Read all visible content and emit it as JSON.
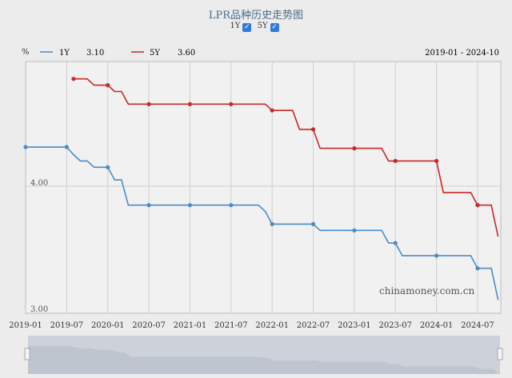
{
  "title": "LPR品种历史走势图",
  "toggles": [
    {
      "label": "1Y",
      "checked": true
    },
    {
      "label": "5Y",
      "checked": true
    }
  ],
  "unit": "%",
  "range_label": "2019-01 - 2024-10",
  "watermark": "chinamoney.com.cn",
  "check_glyph": "✓",
  "chart_data": {
    "type": "line",
    "title": "LPR品种历史走势图",
    "ylabel": "%",
    "ylim": [
      3.0,
      5.0
    ],
    "yticks": [
      "4.00",
      "3.00"
    ],
    "xticks": [
      "2019-01",
      "2019-07",
      "2020-01",
      "2020-07",
      "2021-01",
      "2021-07",
      "2022-01",
      "2022-07",
      "2023-01",
      "2023-07",
      "2024-01",
      "2024-07"
    ],
    "grid": true,
    "legend": "top-left",
    "start": "2019-01",
    "end": "2024-10",
    "series": [
      {
        "name": "1Y",
        "latest": "3.10",
        "color": "#4a8cc8",
        "values": [
          4.31,
          4.31,
          4.31,
          4.31,
          4.31,
          4.31,
          4.31,
          4.25,
          4.2,
          4.2,
          4.15,
          4.15,
          4.15,
          4.05,
          4.05,
          3.85,
          3.85,
          3.85,
          3.85,
          3.85,
          3.85,
          3.85,
          3.85,
          3.85,
          3.85,
          3.85,
          3.85,
          3.85,
          3.85,
          3.85,
          3.85,
          3.85,
          3.85,
          3.85,
          3.85,
          3.8,
          3.7,
          3.7,
          3.7,
          3.7,
          3.7,
          3.7,
          3.7,
          3.65,
          3.65,
          3.65,
          3.65,
          3.65,
          3.65,
          3.65,
          3.65,
          3.65,
          3.65,
          3.55,
          3.55,
          3.45,
          3.45,
          3.45,
          3.45,
          3.45,
          3.45,
          3.45,
          3.45,
          3.45,
          3.45,
          3.45,
          3.35,
          3.35,
          3.35,
          3.1
        ]
      },
      {
        "name": "5Y",
        "latest": "3.60",
        "color": "#c8282a",
        "values": [
          null,
          null,
          null,
          null,
          null,
          null,
          null,
          4.85,
          4.85,
          4.85,
          4.8,
          4.8,
          4.8,
          4.75,
          4.75,
          4.65,
          4.65,
          4.65,
          4.65,
          4.65,
          4.65,
          4.65,
          4.65,
          4.65,
          4.65,
          4.65,
          4.65,
          4.65,
          4.65,
          4.65,
          4.65,
          4.65,
          4.65,
          4.65,
          4.65,
          4.65,
          4.6,
          4.6,
          4.6,
          4.6,
          4.45,
          4.45,
          4.45,
          4.3,
          4.3,
          4.3,
          4.3,
          4.3,
          4.3,
          4.3,
          4.3,
          4.3,
          4.3,
          4.2,
          4.2,
          4.2,
          4.2,
          4.2,
          4.2,
          4.2,
          4.2,
          3.95,
          3.95,
          3.95,
          3.95,
          3.95,
          3.85,
          3.85,
          3.85,
          3.6
        ]
      }
    ]
  }
}
